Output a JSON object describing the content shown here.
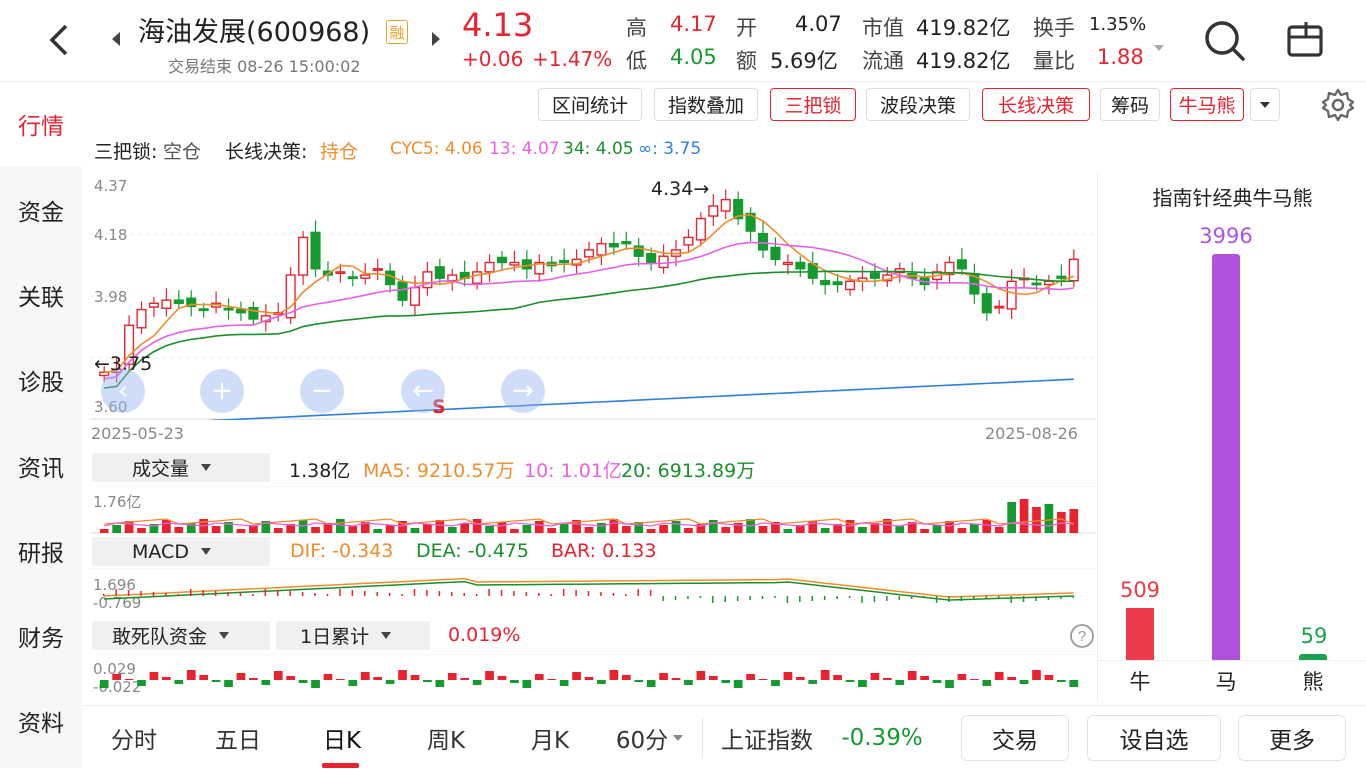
{
  "header": {
    "stock_name": "海油发展(600968)",
    "margin_badge": "融",
    "status": "交易结束 08-26 15:00:02",
    "price": "4.13",
    "change": "+0.06",
    "change_pct": "+1.47%",
    "stats": [
      {
        "label": "高",
        "value": "4.17",
        "color": "red"
      },
      {
        "label": "开",
        "value": "4.07",
        "color": "black"
      },
      {
        "label": "市值",
        "value": "419.82亿",
        "color": "black"
      },
      {
        "label": "换手",
        "value": "1.35%",
        "color": "black"
      },
      {
        "label": "低",
        "value": "4.05",
        "color": "green"
      },
      {
        "label": "额",
        "value": "5.69亿",
        "color": "black"
      },
      {
        "label": "流通",
        "value": "419.82亿",
        "color": "black"
      },
      {
        "label": "量比",
        "value": "1.88",
        "color": "red"
      }
    ]
  },
  "sidebar": {
    "items": [
      "行情",
      "资金",
      "关联",
      "诊股",
      "资讯",
      "研报",
      "财务",
      "资料"
    ]
  },
  "toolbar": {
    "buttons": [
      "区间统计",
      "指数叠加",
      "三把锁",
      "波段决策",
      "长线决策",
      "筹码",
      "牛马熊"
    ]
  },
  "indicators": {
    "lock_label": "三把锁:",
    "lock_value": "空仓",
    "long_label": "长线决策:",
    "long_value": "持仓",
    "cyc5": "CYC5: 4.06",
    "cyc13": "13: 4.07",
    "cyc34": "34: 4.05",
    "cycinf": "∞: 3.75"
  },
  "kline": {
    "y_ticks": [
      "4.37",
      "4.18",
      "3.98",
      "3.75",
      "3.60"
    ],
    "high_mark": "4.34",
    "low_mark": "3.75",
    "date_start": "2025-05-23",
    "date_end": "2025-08-26",
    "signal": "S"
  },
  "volume": {
    "selector": "成交量",
    "current": "1.38亿",
    "ma5": "MA5: 9210.57万",
    "ma10": "10: 1.01亿",
    "ma20": "20: 6913.89万",
    "max": "1.76亿"
  },
  "macd": {
    "selector": "MACD",
    "dif": "DIF: -0.343",
    "dea": "DEA: -0.475",
    "bar": "BAR: 0.133",
    "top": "1.696",
    "bottom": "-0.769"
  },
  "fund": {
    "selector": "敢死队资金",
    "period": "1日累计",
    "value": "0.019%",
    "top": "0.029",
    "bottom": "-0.022"
  },
  "bull_bear": {
    "title": "指南针经典牛马熊",
    "categories": [
      "牛",
      "马",
      "熊"
    ],
    "values": [
      "509",
      "3996",
      "59"
    ],
    "colors": [
      "#ee3b4a",
      "#b052e0",
      "#1aa34a"
    ]
  },
  "bottom_bar": {
    "tabs": [
      "分时",
      "五日",
      "日K",
      "周K",
      "月K",
      "60分"
    ],
    "active_tab": "日K",
    "index_name": "上证指数",
    "index_change": "-0.39%",
    "buttons": [
      "交易",
      "设自选",
      "更多"
    ]
  },
  "colors": {
    "up": "#e8232f",
    "down": "#159a2f",
    "ma5": "#ef8d2c",
    "ma13": "#e860e8",
    "ma34": "#1a8f2a",
    "ma_inf": "#2d7fe0"
  },
  "icons": [
    "back-icon",
    "prev-stock-icon",
    "next-stock-icon",
    "search-icon",
    "share-icon",
    "settings-icon",
    "help-icon"
  ]
}
